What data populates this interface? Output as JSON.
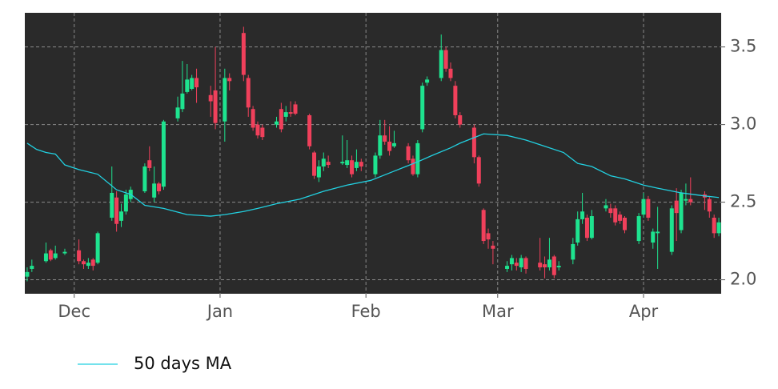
{
  "chart_data": {
    "type": "candlestick",
    "x": [
      0,
      1,
      4,
      5,
      6,
      8,
      11,
      12,
      13,
      14,
      15,
      18,
      19,
      20,
      21,
      22,
      25,
      26,
      27,
      28,
      29,
      32,
      33,
      34,
      35,
      36,
      39,
      40,
      42,
      43,
      46,
      47,
      48,
      49,
      50,
      53,
      54,
      55,
      56,
      57,
      60,
      61,
      62,
      63,
      64,
      67,
      68,
      69,
      70,
      71,
      74,
      75,
      76,
      77,
      78,
      81,
      82,
      83,
      84,
      85,
      88,
      89,
      90,
      91,
      92,
      95,
      96,
      97,
      98,
      99,
      102,
      103,
      104,
      105,
      106,
      109,
      110,
      111,
      112,
      113,
      116,
      117,
      118,
      119,
      120,
      123,
      124,
      125,
      126,
      127,
      130,
      131,
      132,
      133,
      134,
      137,
      138,
      139,
      140,
      141,
      144,
      145,
      146,
      147
    ],
    "open": [
      2.02,
      2.07,
      2.12,
      2.19,
      2.14,
      2.17,
      2.19,
      2.12,
      2.09,
      2.13,
      2.11,
      2.4,
      2.53,
      2.38,
      2.44,
      2.52,
      2.57,
      2.77,
      2.53,
      2.62,
      2.6,
      3.04,
      3.1,
      3.21,
      3.23,
      3.3,
      3.19,
      3.22,
      3.02,
      3.3,
      3.59,
      3.3,
      3.1,
      3.0,
      2.98,
      3.0,
      3.1,
      3.05,
      3.08,
      3.13,
      3.06,
      2.82,
      2.66,
      2.73,
      2.76,
      2.75,
      2.74,
      2.77,
      2.72,
      2.76,
      2.68,
      2.8,
      2.93,
      2.89,
      2.86,
      2.86,
      2.78,
      2.68,
      2.97,
      3.27,
      3.3,
      3.48,
      3.36,
      3.25,
      3.06,
      2.98,
      2.79,
      2.45,
      2.3,
      2.22,
      2.07,
      2.1,
      2.11,
      2.08,
      2.14,
      2.11,
      2.1,
      2.08,
      2.15,
      2.08,
      2.13,
      2.24,
      2.39,
      2.4,
      2.27,
      2.46,
      2.46,
      2.46,
      2.42,
      2.4,
      2.25,
      2.42,
      2.52,
      2.24,
      2.3,
      2.18,
      2.51,
      2.32,
      2.51,
      2.52,
      2.55,
      2.52,
      2.4,
      2.3
    ],
    "high": [
      2.08,
      2.13,
      2.24,
      2.2,
      2.22,
      2.2,
      2.26,
      2.13,
      2.14,
      2.14,
      2.31,
      2.73,
      2.57,
      2.49,
      2.58,
      2.6,
      2.75,
      2.86,
      2.73,
      2.63,
      3.03,
      3.18,
      3.41,
      3.39,
      3.32,
      3.36,
      3.25,
      3.5,
      3.36,
      3.33,
      3.63,
      3.32,
      3.12,
      3.02,
      3.0,
      3.05,
      3.14,
      3.12,
      3.15,
      3.15,
      3.07,
      2.83,
      2.77,
      2.82,
      2.8,
      2.93,
      2.9,
      2.8,
      2.84,
      2.78,
      2.82,
      3.03,
      3.03,
      2.99,
      2.96,
      2.88,
      2.8,
      2.9,
      3.27,
      3.31,
      3.58,
      3.5,
      3.4,
      3.28,
      3.08,
      3.0,
      2.8,
      2.46,
      2.33,
      2.25,
      2.12,
      2.16,
      2.14,
      2.16,
      2.15,
      2.27,
      2.15,
      2.27,
      2.16,
      2.12,
      2.27,
      2.44,
      2.56,
      2.42,
      2.45,
      2.52,
      2.49,
      2.48,
      2.44,
      2.41,
      2.43,
      2.56,
      2.54,
      2.33,
      2.47,
      2.48,
      2.59,
      2.58,
      2.62,
      2.66,
      2.57,
      2.54,
      2.42,
      2.4
    ],
    "low": [
      1.99,
      2.05,
      2.11,
      2.12,
      2.13,
      2.16,
      2.1,
      2.07,
      2.07,
      2.06,
      2.1,
      2.38,
      2.31,
      2.34,
      2.42,
      2.5,
      2.56,
      2.7,
      2.5,
      2.55,
      2.58,
      3.02,
      3.08,
      3.2,
      3.22,
      3.14,
      3.05,
      2.97,
      2.89,
      3.22,
      3.28,
      3.05,
      2.96,
      2.91,
      2.9,
      2.98,
      2.95,
      3.02,
      3.05,
      3.06,
      2.84,
      2.65,
      2.63,
      2.7,
      2.72,
      2.74,
      2.72,
      2.66,
      2.7,
      2.7,
      2.66,
      2.78,
      2.87,
      2.8,
      2.85,
      2.75,
      2.67,
      2.66,
      2.95,
      3.25,
      3.28,
      3.34,
      3.28,
      3.04,
      2.98,
      2.75,
      2.6,
      2.23,
      2.2,
      2.1,
      2.05,
      2.06,
      2.06,
      2.05,
      2.04,
      2.06,
      2.01,
      2.06,
      2.01,
      2.06,
      2.1,
      2.22,
      2.36,
      2.25,
      2.26,
      2.44,
      2.4,
      2.35,
      2.36,
      2.3,
      2.23,
      2.4,
      2.38,
      2.2,
      2.07,
      2.16,
      2.25,
      2.3,
      2.48,
      2.48,
      2.45,
      2.4,
      2.27,
      2.28
    ],
    "close": [
      2.05,
      2.09,
      2.17,
      2.13,
      2.17,
      2.18,
      2.12,
      2.1,
      2.11,
      2.09,
      2.3,
      2.56,
      2.36,
      2.44,
      2.55,
      2.58,
      2.73,
      2.72,
      2.62,
      2.57,
      3.02,
      3.11,
      3.2,
      3.29,
      3.3,
      3.24,
      3.15,
      3.01,
      3.3,
      3.28,
      3.32,
      3.11,
      2.98,
      2.93,
      2.92,
      3.02,
      2.97,
      3.08,
      3.07,
      3.07,
      2.86,
      2.67,
      2.73,
      2.78,
      2.74,
      2.76,
      2.77,
      2.68,
      2.76,
      2.73,
      2.8,
      2.93,
      2.89,
      2.83,
      2.88,
      2.77,
      2.68,
      2.88,
      3.25,
      3.29,
      3.48,
      3.36,
      3.3,
      3.06,
      3.0,
      2.79,
      2.62,
      2.25,
      2.26,
      2.2,
      2.09,
      2.14,
      2.09,
      2.14,
      2.07,
      2.08,
      2.08,
      2.13,
      2.03,
      2.09,
      2.23,
      2.39,
      2.44,
      2.27,
      2.41,
      2.48,
      2.43,
      2.37,
      2.38,
      2.32,
      2.41,
      2.52,
      2.4,
      2.31,
      2.31,
      2.46,
      2.43,
      2.56,
      2.52,
      2.5,
      2.53,
      2.44,
      2.3,
      2.37
    ],
    "up_color": "#1ee38f",
    "down_color": "#f0405b",
    "series": [
      {
        "name": "50 days MA",
        "color": "#22d0e0",
        "x": [
          0,
          2,
          4,
          6,
          8,
          11,
          15,
          19,
          22,
          25,
          29,
          34,
          39,
          42,
          46,
          49,
          53,
          58,
          63,
          68,
          73,
          78,
          83,
          86,
          90,
          92,
          97,
          102,
          106,
          110,
          114,
          117,
          120,
          124,
          127,
          131,
          134,
          139,
          144,
          147
        ],
        "values": [
          2.88,
          2.84,
          2.82,
          2.81,
          2.74,
          2.71,
          2.68,
          2.58,
          2.55,
          2.48,
          2.46,
          2.42,
          2.41,
          2.42,
          2.44,
          2.46,
          2.49,
          2.52,
          2.57,
          2.61,
          2.64,
          2.7,
          2.76,
          2.8,
          2.85,
          2.88,
          2.94,
          2.93,
          2.9,
          2.86,
          2.82,
          2.75,
          2.73,
          2.67,
          2.65,
          2.61,
          2.59,
          2.56,
          2.54,
          2.53
        ]
      }
    ],
    "xlim": [
      -0.5,
      147.5
    ],
    "xticks": [
      {
        "value": 10,
        "label": "Dec"
      },
      {
        "value": 41,
        "label": "Jan"
      },
      {
        "value": 72,
        "label": "Feb"
      },
      {
        "value": 100,
        "label": "Mar"
      },
      {
        "value": 131,
        "label": "Apr"
      }
    ],
    "ylim": [
      1.91,
      3.72
    ],
    "yticks": [
      {
        "value": 2,
        "label": "2.0"
      },
      {
        "value": 2.5,
        "label": "2.5"
      },
      {
        "value": 3,
        "label": "3.0"
      },
      {
        "value": 3.5,
        "label": "3.5"
      }
    ],
    "grid": true,
    "background": "#2a2a2a",
    "legend": "bottom-left"
  }
}
